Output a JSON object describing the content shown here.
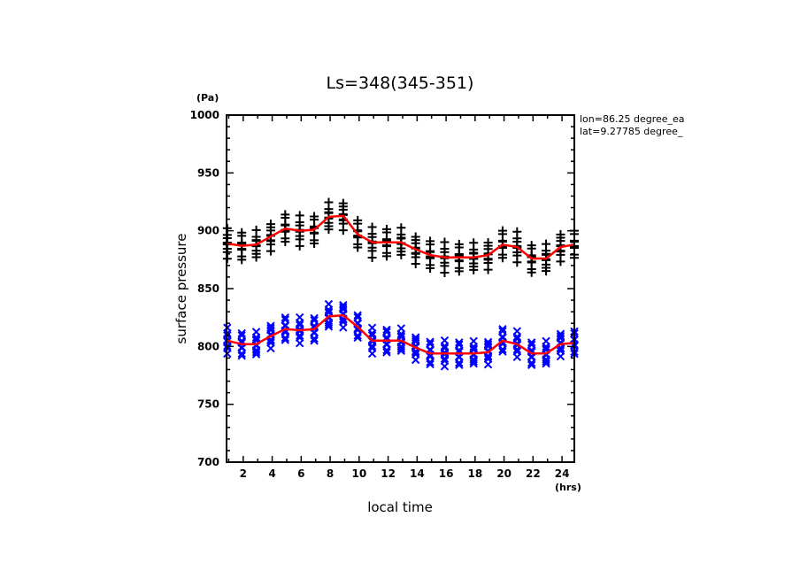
{
  "chart_data": {
    "type": "scatter",
    "title": "Ls=348(345-351)",
    "xlabel": "local time",
    "xunit": "(hrs)",
    "ylabel": "surface pressure",
    "yunit": "(Pa)",
    "xlim": [
      0.85,
      24.85
    ],
    "ylim": [
      700,
      1000
    ],
    "xticks": [
      2,
      4,
      6,
      8,
      10,
      12,
      14,
      16,
      18,
      20,
      22,
      24
    ],
    "yticks": [
      700,
      750,
      800,
      850,
      900,
      950,
      1000
    ],
    "grid": false,
    "annotations": [
      "lon=86.25 degree_ea",
      "lat=9.27785 degree_"
    ],
    "annotation_placement": "top-right-outside",
    "x": [
      0.9,
      1.9,
      2.9,
      3.9,
      4.9,
      5.9,
      6.9,
      7.9,
      8.9,
      9.9,
      10.9,
      11.9,
      12.9,
      13.9,
      14.9,
      15.9,
      16.9,
      17.9,
      18.9,
      19.9,
      20.9,
      21.9,
      22.9,
      23.9,
      24.85
    ],
    "series": [
      {
        "name": "surface pressure samples (black)",
        "marker": "plus",
        "color": "#000000",
        "mean": [
          889,
          887,
          888,
          895,
          902,
          900,
          901,
          912,
          913,
          897,
          890,
          890,
          890,
          884,
          879,
          877,
          877,
          877,
          879,
          888,
          886,
          876,
          876,
          886,
          888
        ],
        "spread": [
          -12,
          -8,
          -4,
          -2,
          0,
          2,
          4,
          8,
          12
        ]
      },
      {
        "name": "surface pressure samples (blue)",
        "marker": "x",
        "color": "#0000ff",
        "mean": [
          805,
          802,
          802,
          809,
          815,
          814,
          815,
          826,
          827,
          817,
          805,
          805,
          805,
          799,
          794,
          794,
          794,
          794,
          795,
          805,
          802,
          794,
          794,
          802,
          803
        ],
        "spread": [
          -10,
          -7,
          -4,
          -2,
          0,
          2,
          4,
          7,
          10
        ]
      },
      {
        "name": "mean (black series)",
        "type": "line",
        "color": "#ff0000",
        "values_ref": "series.0.mean"
      },
      {
        "name": "mean (blue series)",
        "type": "line",
        "color": "#ff0000",
        "values_ref": "series.1.mean"
      }
    ]
  }
}
